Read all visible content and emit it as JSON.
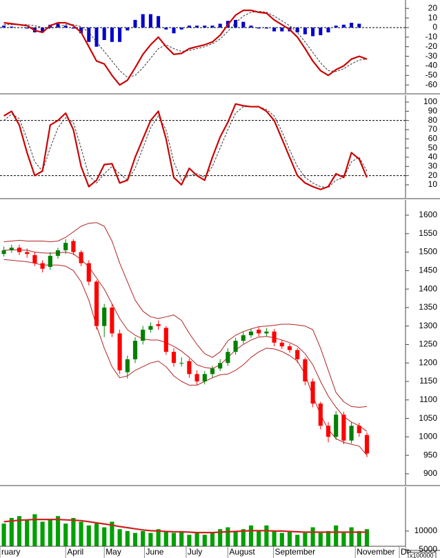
{
  "chart_data": [
    {
      "type": "line",
      "xlim": [
        -0.5,
        52
      ],
      "ylim": [
        -68.5,
        28.8
      ],
      "yticks": [
        20,
        10,
        0,
        -10,
        -20,
        -30,
        -40,
        -50,
        -60
      ],
      "reference_lines": [
        0
      ],
      "series": [
        {
          "kind": "bar",
          "color": "#0000cc",
          "values": [
            2,
            1,
            0,
            -1,
            -5,
            -5,
            3,
            4,
            2,
            -1,
            -6,
            -15,
            -20,
            -13,
            -15,
            -15,
            -3,
            8,
            14,
            14,
            12,
            -2,
            -6,
            -2,
            2,
            2,
            2,
            2,
            4,
            7,
            8,
            6,
            2,
            -1,
            -1,
            -4,
            -4,
            -4,
            -5,
            -7,
            -9,
            -8,
            -5,
            2,
            3,
            5,
            4,
            0
          ]
        },
        {
          "kind": "line",
          "dash": true,
          "color": "#333333",
          "values": [
            3,
            3,
            3,
            3,
            2,
            0,
            -1,
            1,
            3,
            3,
            1,
            -5,
            -15,
            -25,
            -35,
            -45,
            -52,
            -50,
            -42,
            -32,
            -22,
            -18,
            -22,
            -25,
            -24,
            -22,
            -20,
            -17,
            -12,
            -4,
            5,
            12,
            16,
            17,
            16,
            12,
            7,
            2,
            -5,
            -15,
            -26,
            -37,
            -45,
            -46,
            -43,
            -38,
            -34,
            -33
          ]
        },
        {
          "kind": "line",
          "color": "#cc0000",
          "values": [
            5,
            4,
            3,
            2,
            -3,
            -5,
            2,
            5,
            5,
            2,
            -5,
            -20,
            -35,
            -38,
            -50,
            -60,
            -55,
            -42,
            -28,
            -18,
            -10,
            -20,
            -28,
            -27,
            -22,
            -20,
            -18,
            -15,
            -8,
            3,
            13,
            18,
            18,
            16,
            15,
            8,
            3,
            -2,
            -10,
            -22,
            -35,
            -45,
            -50,
            -44,
            -40,
            -33,
            -30,
            -33
          ]
        }
      ]
    },
    {
      "type": "line",
      "xlim": [
        -0.5,
        52
      ],
      "ylim": [
        -4.3,
        107.5
      ],
      "yticks": [
        100,
        90,
        80,
        70,
        60,
        50,
        40,
        30,
        20,
        10
      ],
      "reference_lines": [
        80,
        20
      ],
      "series": [
        {
          "kind": "line",
          "dash": true,
          "color": "#333333",
          "values": [
            80,
            87,
            82,
            60,
            35,
            25,
            50,
            72,
            83,
            78,
            50,
            20,
            12,
            22,
            30,
            22,
            15,
            28,
            50,
            72,
            85,
            70,
            35,
            15,
            20,
            22,
            18,
            30,
            50,
            70,
            88,
            95,
            95,
            95,
            92,
            85,
            68,
            48,
            30,
            18,
            12,
            8,
            7,
            15,
            18,
            35,
            40,
            25
          ]
        },
        {
          "kind": "line",
          "color": "#cc0000",
          "values": [
            85,
            90,
            75,
            45,
            20,
            25,
            75,
            80,
            88,
            70,
            30,
            8,
            15,
            32,
            33,
            12,
            15,
            40,
            60,
            80,
            90,
            60,
            18,
            10,
            28,
            20,
            15,
            40,
            62,
            78,
            98,
            96,
            95,
            95,
            90,
            80,
            60,
            40,
            20,
            12,
            8,
            5,
            8,
            22,
            18,
            45,
            38,
            18
          ]
        }
      ]
    },
    {
      "type": "candlestick",
      "xlim": [
        -0.5,
        52
      ],
      "ylim": [
        870,
        1641
      ],
      "yticks": [
        1600,
        1550,
        1500,
        1450,
        1400,
        1350,
        1300,
        1250,
        1200,
        1150,
        1100,
        1050,
        1000,
        950,
        900
      ],
      "up_color": "#008000",
      "down_color": "#ff0000",
      "open": [
        1495,
        1505,
        1512,
        1500,
        1492,
        1470,
        1460,
        1490,
        1505,
        1530,
        1500,
        1470,
        1420,
        1300,
        1350,
        1280,
        1175,
        1210,
        1260,
        1290,
        1305,
        1295,
        1230,
        1200,
        1205,
        1170,
        1150,
        1170,
        1185,
        1200,
        1230,
        1260,
        1275,
        1290,
        1280,
        1285,
        1255,
        1245,
        1235,
        1210,
        1150,
        1090,
        1030,
        1000,
        1060,
        990,
        1030,
        1005
      ],
      "high": [
        1515,
        1520,
        1520,
        1510,
        1500,
        1478,
        1500,
        1512,
        1535,
        1535,
        1505,
        1478,
        1425,
        1360,
        1360,
        1290,
        1220,
        1270,
        1300,
        1310,
        1315,
        1300,
        1240,
        1215,
        1212,
        1180,
        1178,
        1192,
        1210,
        1240,
        1268,
        1285,
        1292,
        1298,
        1295,
        1292,
        1262,
        1252,
        1240,
        1215,
        1158,
        1095,
        1040,
        1070,
        1068,
        1040,
        1038,
        1012
      ],
      "low": [
        1488,
        1498,
        1492,
        1485,
        1462,
        1445,
        1452,
        1482,
        1495,
        1492,
        1462,
        1410,
        1290,
        1270,
        1270,
        1170,
        1158,
        1200,
        1250,
        1282,
        1290,
        1222,
        1190,
        1190,
        1160,
        1140,
        1142,
        1160,
        1178,
        1192,
        1222,
        1252,
        1268,
        1272,
        1272,
        1245,
        1238,
        1228,
        1200,
        1140,
        1080,
        1020,
        985,
        992,
        980,
        982,
        1000,
        945
      ],
      "close": [
        1505,
        1512,
        1500,
        1495,
        1470,
        1455,
        1490,
        1505,
        1525,
        1500,
        1470,
        1420,
        1300,
        1350,
        1280,
        1180,
        1210,
        1260,
        1290,
        1300,
        1300,
        1230,
        1200,
        1200,
        1170,
        1150,
        1170,
        1185,
        1200,
        1230,
        1260,
        1275,
        1285,
        1280,
        1285,
        1255,
        1245,
        1235,
        1210,
        1150,
        1090,
        1030,
        1000,
        1060,
        990,
        1030,
        1010,
        955
      ],
      "series": [
        {
          "kind": "line",
          "color": "#b22222",
          "values": [
            1528,
            1530,
            1532,
            1530,
            1530,
            1530,
            1528,
            1530,
            1540,
            1555,
            1570,
            1578,
            1580,
            1570,
            1530,
            1470,
            1420,
            1370,
            1340,
            1325,
            1320,
            1325,
            1330,
            1315,
            1280,
            1250,
            1225,
            1215,
            1230,
            1260,
            1275,
            1285,
            1292,
            1298,
            1300,
            1302,
            1305,
            1305,
            1303,
            1300,
            1290,
            1240,
            1180,
            1120,
            1095,
            1082,
            1080,
            1082
          ]
        },
        {
          "kind": "line",
          "color": "#b22222",
          "values": [
            1505,
            1506,
            1506,
            1505,
            1500,
            1498,
            1497,
            1498,
            1500,
            1495,
            1480,
            1460,
            1430,
            1400,
            1360,
            1320,
            1290,
            1275,
            1265,
            1262,
            1262,
            1255,
            1245,
            1232,
            1215,
            1195,
            1188,
            1185,
            1195,
            1215,
            1235,
            1250,
            1262,
            1270,
            1272,
            1268,
            1262,
            1255,
            1245,
            1225,
            1195,
            1150,
            1110,
            1080,
            1055,
            1040,
            1030,
            1015
          ]
        },
        {
          "kind": "line",
          "color": "#b22222",
          "values": [
            1480,
            1478,
            1476,
            1474,
            1470,
            1465,
            1465,
            1465,
            1462,
            1450,
            1420,
            1370,
            1300,
            1240,
            1190,
            1160,
            1165,
            1180,
            1190,
            1200,
            1205,
            1190,
            1165,
            1150,
            1140,
            1140,
            1150,
            1160,
            1168,
            1170,
            1180,
            1195,
            1215,
            1230,
            1240,
            1238,
            1231,
            1220,
            1205,
            1170,
            1110,
            1060,
            1020,
            995,
            985,
            980,
            975,
            950
          ]
        }
      ]
    },
    {
      "type": "bar",
      "xlim": [
        -0.5,
        52
      ],
      "ylim": [
        5000,
        21800
      ],
      "yticks": [
        10000,
        5000
      ],
      "volume_unit": "x100000",
      "xticks": [
        {
          "value": -0.5,
          "label": "ruary"
        },
        {
          "value": 8,
          "label": "April"
        },
        {
          "value": 13,
          "label": "May"
        },
        {
          "value": 18.2,
          "label": "June"
        },
        {
          "value": 23.6,
          "label": "July"
        },
        {
          "value": 29,
          "label": "August"
        },
        {
          "value": 34.9,
          "label": "September"
        },
        {
          "value": 45.5,
          "label": "November"
        },
        {
          "value": 51.2,
          "label": "De"
        }
      ],
      "series": [
        {
          "kind": "bar",
          "color": "#00a000",
          "values": [
            12000,
            13500,
            14000,
            13000,
            14500,
            12500,
            13000,
            14000,
            12000,
            13500,
            12500,
            11500,
            12000,
            11000,
            12500,
            10500,
            10000,
            9500,
            10000,
            9500,
            10500,
            10000,
            9500,
            10000,
            9000,
            9500,
            9000,
            9500,
            10500,
            11000,
            10000,
            10500,
            11500,
            10000,
            11500,
            10000,
            9500,
            10000,
            9000,
            9500,
            11000,
            9500,
            10000,
            11500,
            9500,
            11000,
            10000,
            10500
          ]
        },
        {
          "kind": "line",
          "color": "#cc2222",
          "values": [
            12500,
            12700,
            12900,
            13000,
            13100,
            13100,
            13100,
            13100,
            13000,
            12900,
            12800,
            12500,
            12200,
            11900,
            11600,
            11200,
            10900,
            10600,
            10300,
            10100,
            10000,
            9900,
            9800,
            9800,
            9700,
            9600,
            9600,
            9600,
            9700,
            9800,
            9900,
            10000,
            10100,
            10100,
            10100,
            10000,
            10000,
            9900,
            9800,
            9700,
            9700,
            9700,
            9700,
            9700,
            9700,
            9700,
            9700,
            9700
          ]
        }
      ]
    }
  ]
}
